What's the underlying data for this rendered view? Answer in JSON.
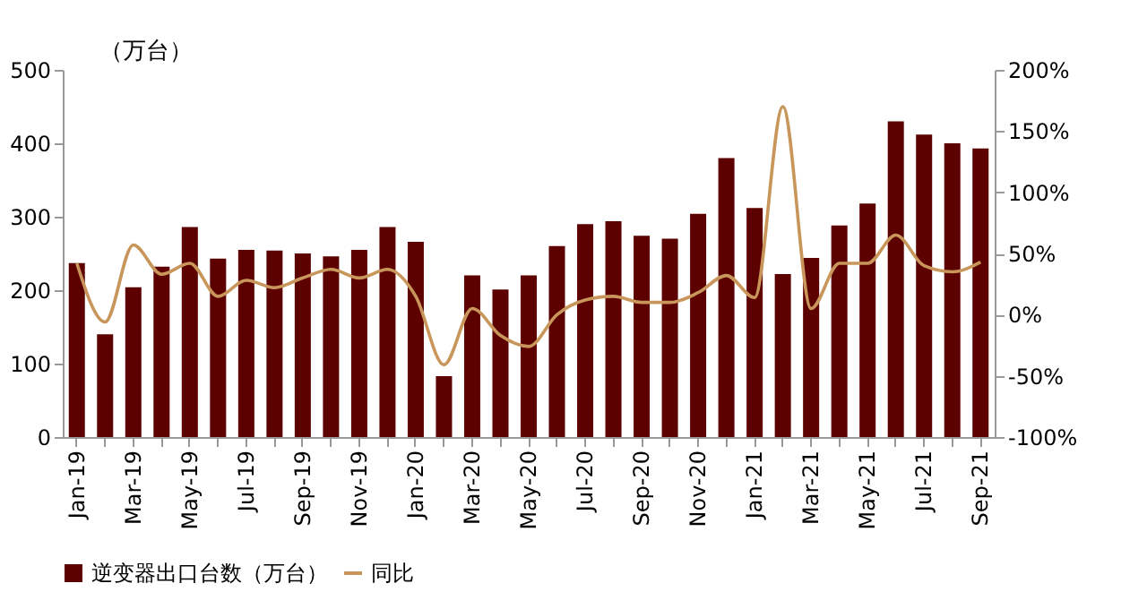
{
  "chart_data": {
    "type": "bar",
    "ylabel": "（万台）",
    "categories": [
      "Jan-19",
      null,
      "Mar-19",
      null,
      "May-19",
      null,
      "Jul-19",
      null,
      "Sep-19",
      null,
      "Nov-19",
      null,
      "Jan-20",
      null,
      "Mar-20",
      null,
      "May-20",
      null,
      "Jul-20",
      null,
      "Sep-20",
      null,
      "Nov-20",
      null,
      "Jan-21",
      null,
      "Mar-21",
      null,
      "May-21",
      null,
      "Jul-21",
      null,
      "Sep-21"
    ],
    "series": [
      {
        "name": "逆变器出口台数（万台）",
        "color": "#5c0000",
        "values": [
          237,
          140,
          204,
          232,
          286,
          243,
          255,
          254,
          250,
          246,
          255,
          286,
          266,
          83,
          220,
          201,
          220,
          260,
          290,
          294,
          274,
          270,
          304,
          380,
          312,
          222,
          244,
          288,
          318,
          430,
          412,
          400,
          393
        ]
      },
      {
        "name": "同比",
        "type": "line",
        "axis": "y2",
        "color": "#c8965a",
        "values": [
          42,
          -6,
          57,
          33,
          42,
          15,
          28,
          22,
          30,
          37,
          30,
          37,
          15,
          -41,
          5,
          -17,
          -26,
          0,
          12,
          15,
          10,
          10,
          18,
          32,
          14,
          170,
          5,
          42,
          42,
          65,
          40,
          35,
          43
        ]
      }
    ],
    "ylim": [
      0,
      500
    ],
    "yticks": [
      0,
      100,
      200,
      300,
      400,
      500
    ],
    "y2lim": [
      -100,
      200
    ],
    "y2ticks": [
      {
        "value": -100,
        "label": "-100%"
      },
      {
        "value": -50,
        "label": "-50%"
      },
      {
        "value": 0,
        "label": "0%"
      },
      {
        "value": 50,
        "label": "50%"
      },
      {
        "value": 100,
        "label": "100%"
      },
      {
        "value": 150,
        "label": "150%"
      },
      {
        "value": 200,
        "label": "200%"
      }
    ],
    "grid": false,
    "legend": "bottom",
    "line_style": "solid"
  }
}
